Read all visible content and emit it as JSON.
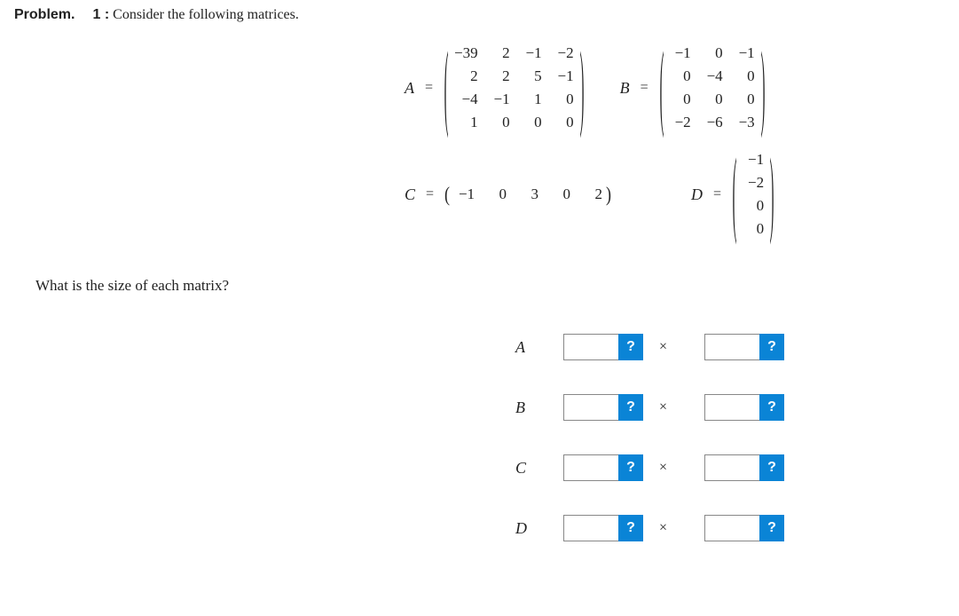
{
  "header": {
    "problem_label": "Problem.",
    "problem_num": "1 :",
    "problem_text": "Consider the following matrices."
  },
  "matrices": {
    "A": {
      "label": "A",
      "rows": 4,
      "cols": 4,
      "data": [
        [
          "−39",
          "2",
          "−1",
          "−2"
        ],
        [
          "2",
          "2",
          "5",
          "−1"
        ],
        [
          "−4",
          "−1",
          "1",
          "0"
        ],
        [
          "1",
          "0",
          "0",
          "0"
        ]
      ]
    },
    "B": {
      "label": "B",
      "rows": 4,
      "cols": 3,
      "data": [
        [
          "−1",
          "0",
          "−1"
        ],
        [
          "0",
          "−4",
          "0"
        ],
        [
          "0",
          "0",
          "0"
        ],
        [
          "−2",
          "−6",
          "−3"
        ]
      ]
    },
    "C": {
      "label": "C",
      "rows": 1,
      "cols": 5,
      "data": [
        [
          "−1",
          "0",
          "3",
          "0",
          "2"
        ]
      ]
    },
    "D": {
      "label": "D",
      "rows": 4,
      "cols": 1,
      "data": [
        [
          "−1"
        ],
        [
          "−2"
        ],
        [
          "0"
        ],
        [
          "0"
        ]
      ]
    }
  },
  "eq_symbol": "=",
  "question": "What is the size of each matrix?",
  "answers": {
    "rows": [
      {
        "label": "A",
        "rows_value": "",
        "cols_value": ""
      },
      {
        "label": "B",
        "rows_value": "",
        "cols_value": ""
      },
      {
        "label": "C",
        "rows_value": "",
        "cols_value": ""
      },
      {
        "label": "D",
        "rows_value": "",
        "cols_value": ""
      }
    ],
    "times_symbol": "×",
    "hint_char": "?"
  },
  "style": {
    "hint_bg": "#0a84d6",
    "hint_fg": "#ffffff",
    "input_border": "#888888",
    "text_color": "#222222",
    "cell_fontsize": 17,
    "label_fontsize": 18
  }
}
